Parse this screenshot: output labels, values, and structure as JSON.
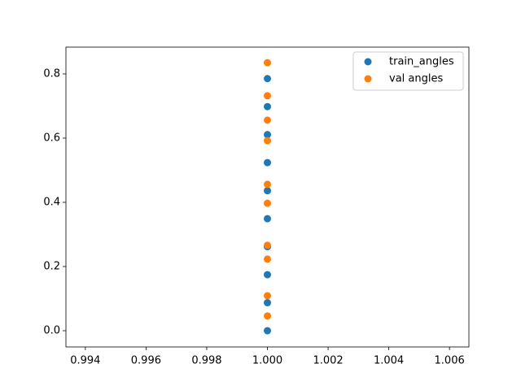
{
  "chart_data": {
    "type": "scatter",
    "series": [
      {
        "name": "train_angles",
        "color": "#1f77b4",
        "x": [
          1,
          1,
          1,
          1,
          1,
          1,
          1,
          1,
          1,
          1
        ],
        "values": [
          0,
          0.0873,
          0.1745,
          0.2618,
          0.349,
          0.4363,
          0.5236,
          0.6109,
          0.6981,
          0.7854
        ]
      },
      {
        "name": "val angles",
        "color": "#ff7f0e",
        "x": [
          1,
          1,
          1,
          1,
          1,
          1,
          1,
          1,
          1,
          1
        ],
        "values": [
          0.835,
          0.732,
          0.656,
          0.592,
          0.456,
          0.397,
          0.266,
          0.223,
          0.109,
          0.046
        ]
      }
    ],
    "xlim": [
      0.99336,
      1.00664
    ],
    "xticks": [
      0.994,
      0.996,
      0.998,
      {
        "value": 1,
        "label": "1.000"
      },
      1.002,
      1.004,
      1.006
    ],
    "ylim": [
      -0.0506,
      0.8835
    ],
    "yticks": [
      {
        "value": 0,
        "label": "0.0"
      },
      0.2,
      0.4,
      0.6,
      0.8
    ],
    "legend": "upper right"
  }
}
